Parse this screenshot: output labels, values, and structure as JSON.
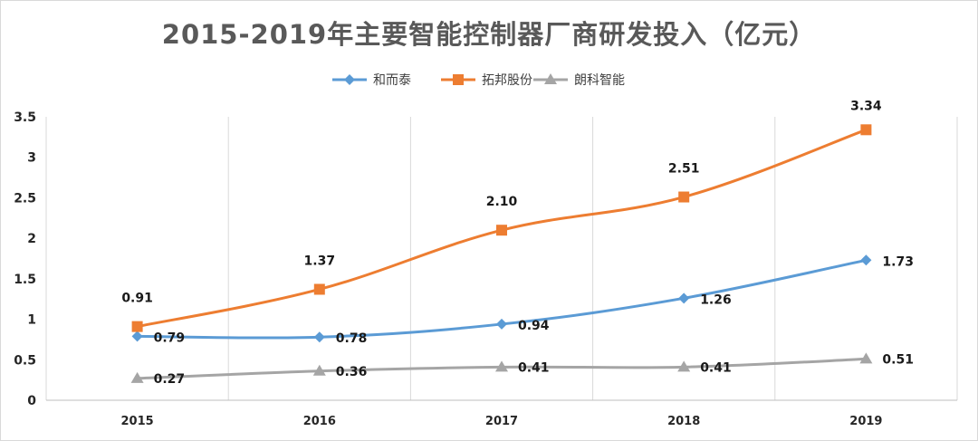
{
  "chart_data": {
    "type": "line",
    "title": "2015-2019年主要智能控制器厂商研发投入（亿元）",
    "categories": [
      "2015",
      "2016",
      "2017",
      "2018",
      "2019"
    ],
    "ylim": [
      0,
      3.5
    ],
    "y_ticks": [
      "0",
      "0.5",
      "1",
      "1.5",
      "2",
      "2.5",
      "3",
      "3.5"
    ],
    "grid": "vertical",
    "legend_position": "top",
    "series": [
      {
        "name": "和而泰",
        "values": [
          0.79,
          0.78,
          0.94,
          1.26,
          1.73
        ],
        "labels": [
          "0.79",
          "0.78",
          "0.94",
          "1.26",
          "1.73"
        ],
        "color": "#5b9bd5",
        "marker": "diamond"
      },
      {
        "name": "拓邦股份",
        "values": [
          0.91,
          1.37,
          2.1,
          2.51,
          3.34
        ],
        "labels": [
          "0.91",
          "1.37",
          "2.10",
          "2.51",
          "3.34"
        ],
        "color": "#ed7d31",
        "marker": "square"
      },
      {
        "name": "朗科智能",
        "values": [
          0.27,
          0.36,
          0.41,
          0.41,
          0.51
        ],
        "labels": [
          "0.27",
          "0.36",
          "0.41",
          "0.41",
          "0.51"
        ],
        "color": "#a5a5a5",
        "marker": "triangle"
      }
    ]
  }
}
